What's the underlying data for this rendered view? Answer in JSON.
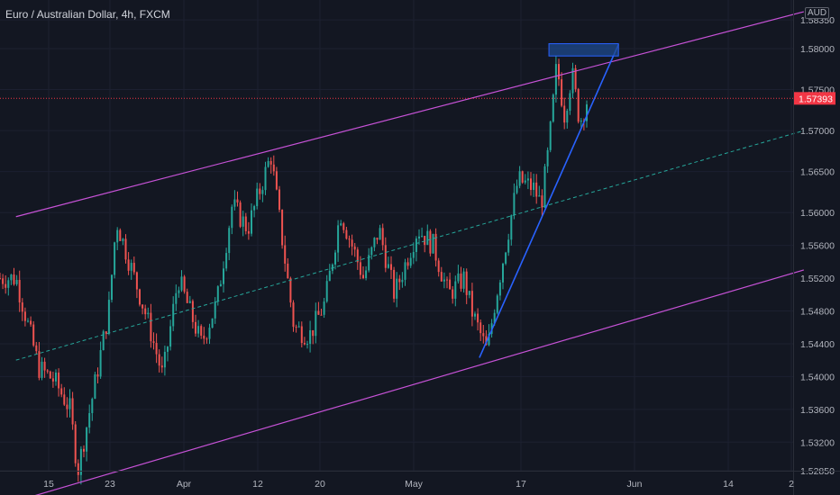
{
  "header": {
    "title": "Euro / Australian Dollar, 4h, FXCM",
    "currency": "AUD"
  },
  "colors": {
    "background": "#131722",
    "up": "#26a69a",
    "down": "#ef5350",
    "channel": "#c652d6",
    "midline": "#26a69a",
    "trendline": "#2962ff",
    "zone": "#1e4a8c",
    "price_tag": "#f23645",
    "axis_text": "#b2b5be"
  },
  "chart_data": {
    "type": "candlestick",
    "title": "Euro / Australian Dollar, 4h, FXCM",
    "ylabel": "",
    "y_ticks": [
      "1.58350",
      "1.58000",
      "1.57500",
      "1.57000",
      "1.56500",
      "1.56000",
      "1.55600",
      "1.55200",
      "1.54800",
      "1.54400",
      "1.54000",
      "1.53600",
      "1.53200",
      "1.52850"
    ],
    "x_ticks": [
      "15",
      "23",
      "Apr",
      "12",
      "20",
      "May",
      "17",
      "Jun",
      "14",
      "2"
    ],
    "ylim": [
      1.5261,
      1.5856
    ],
    "current_price": "1.57393",
    "close_path": [
      {
        "x": "Mar 11",
        "y": 1.552
      },
      {
        "x": "Mar 14",
        "y": 1.541
      },
      {
        "x": "Mar 16",
        "y": 1.5395
      },
      {
        "x": "Mar 18",
        "y": 1.536
      },
      {
        "x": "Mar 19",
        "y": 1.5285
      },
      {
        "x": "Mar 21",
        "y": 1.538
      },
      {
        "x": "Mar 23",
        "y": 1.548
      },
      {
        "x": "Mar 24",
        "y": 1.559
      },
      {
        "x": "Mar 26",
        "y": 1.553
      },
      {
        "x": "Mar 28",
        "y": 1.547
      },
      {
        "x": "Mar 30",
        "y": 1.54
      },
      {
        "x": "Apr 1",
        "y": 1.552
      },
      {
        "x": "Apr 4",
        "y": 1.544
      },
      {
        "x": "Apr 6",
        "y": 1.549
      },
      {
        "x": "Apr 8",
        "y": 1.561
      },
      {
        "x": "Apr 10",
        "y": 1.558
      },
      {
        "x": "Apr 13",
        "y": 1.567
      },
      {
        "x": "Apr 14",
        "y": 1.56
      },
      {
        "x": "Apr 16",
        "y": 1.546
      },
      {
        "x": "Apr 18",
        "y": 1.545
      },
      {
        "x": "Apr 20",
        "y": 1.549
      },
      {
        "x": "Apr 22",
        "y": 1.56
      },
      {
        "x": "Apr 25",
        "y": 1.552
      },
      {
        "x": "Apr 27",
        "y": 1.558
      },
      {
        "x": "Apr 29",
        "y": 1.55
      },
      {
        "x": "May 2",
        "y": 1.558
      },
      {
        "x": "May 4",
        "y": 1.556
      },
      {
        "x": "May 6",
        "y": 1.55
      },
      {
        "x": "May 8",
        "y": 1.552
      },
      {
        "x": "May 9",
        "y": 1.548
      },
      {
        "x": "May 11",
        "y": 1.543
      },
      {
        "x": "May 12",
        "y": 1.549
      },
      {
        "x": "May 13",
        "y": 1.554
      },
      {
        "x": "May 15",
        "y": 1.564
      },
      {
        "x": "May 17",
        "y": 1.563
      },
      {
        "x": "May 18",
        "y": 1.561
      },
      {
        "x": "May 19",
        "y": 1.568
      },
      {
        "x": "May 20",
        "y": 1.578
      },
      {
        "x": "May 21",
        "y": 1.572
      },
      {
        "x": "May 22",
        "y": 1.577
      },
      {
        "x": "May 23",
        "y": 1.571
      },
      {
        "x": "May 24",
        "y": 1.5739
      }
    ],
    "annotations": {
      "channel_upper": [
        {
          "x": "Mar 11",
          "y": 1.5595
        },
        {
          "x": "Jun 21",
          "y": 1.5845
        }
      ],
      "channel_lower": [
        {
          "x": "Mar 11",
          "y": 1.5248
        },
        {
          "x": "Jun 21",
          "y": 1.553
        }
      ],
      "channel_mid": [
        {
          "x": "Mar 11",
          "y": 1.542
        },
        {
          "x": "Jun 21",
          "y": 1.57
        }
      ],
      "trendline": [
        {
          "x": "May 10",
          "y": 1.5423
        },
        {
          "x": "May 28",
          "y": 1.5805
        }
      ],
      "resistance_zone": {
        "x": [
          "May 19",
          "May 28"
        ],
        "y": [
          1.5791,
          1.5806
        ]
      }
    }
  }
}
